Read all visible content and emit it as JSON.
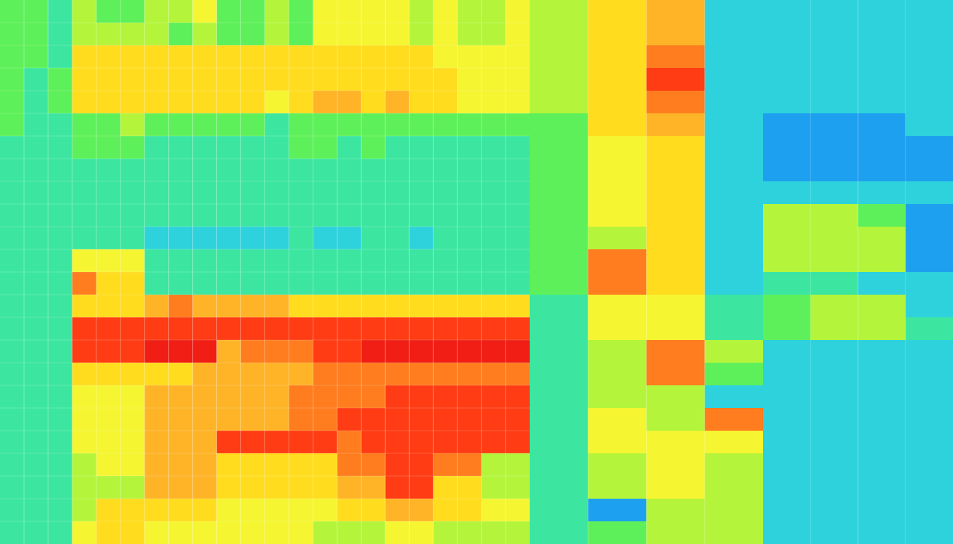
{
  "chart_data": {
    "type": "heatmap",
    "title": "",
    "xlabel": "",
    "ylabel": "",
    "colormap": "jet",
    "palette": [
      "#0050f0",
      "#1ea0f0",
      "#2ed2dc",
      "#3ce6a0",
      "#5ef05a",
      "#b4f53c",
      "#f5f532",
      "#ffdc1e",
      "#ffb428",
      "#ff7d1e",
      "#ff3c14",
      "#f01e14"
    ],
    "value_range": [
      0,
      11
    ],
    "cell_labels_visible": false,
    "regions": [
      {
        "name": "left-dense",
        "col_count": 22,
        "row_count": 24,
        "col_span": [
          0,
          747
        ]
      },
      {
        "name": "middle-bands",
        "col_count": 4,
        "row_count": 24,
        "col_span": [
          747,
          1076
        ]
      },
      {
        "name": "right-blue",
        "col_count": 4,
        "row_count": 24,
        "col_span": [
          1076,
          1344
        ]
      }
    ],
    "left_values": [
      [
        4,
        4,
        3,
        5,
        4,
        4,
        5,
        5,
        6,
        4,
        4,
        5,
        4,
        6,
        6,
        6,
        6,
        5,
        6,
        5,
        5,
        6
      ],
      [
        4,
        4,
        3,
        5,
        5,
        5,
        5,
        4,
        5,
        4,
        4,
        5,
        4,
        6,
        6,
        6,
        6,
        5,
        6,
        5,
        5,
        6
      ],
      [
        4,
        4,
        3,
        7,
        7,
        7,
        7,
        7,
        7,
        7,
        7,
        7,
        7,
        7,
        7,
        7,
        7,
        7,
        6,
        6,
        6,
        6
      ],
      [
        4,
        3,
        4,
        7,
        7,
        7,
        7,
        7,
        7,
        7,
        7,
        7,
        7,
        7,
        7,
        7,
        7,
        7,
        7,
        6,
        6,
        6
      ],
      [
        4,
        3,
        4,
        7,
        7,
        7,
        7,
        7,
        7,
        7,
        7,
        6,
        7,
        8,
        8,
        7,
        8,
        7,
        7,
        6,
        6,
        6
      ],
      [
        4,
        3,
        3,
        4,
        4,
        5,
        4,
        4,
        4,
        4,
        4,
        3,
        4,
        4,
        4,
        4,
        4,
        4,
        4,
        4,
        4,
        4
      ],
      [
        3,
        3,
        3,
        4,
        4,
        4,
        3,
        3,
        3,
        3,
        3,
        3,
        4,
        4,
        3,
        4,
        3,
        3,
        3,
        3,
        3,
        3
      ],
      [
        3,
        3,
        3,
        3,
        3,
        3,
        3,
        3,
        3,
        3,
        3,
        3,
        3,
        3,
        3,
        3,
        3,
        3,
        3,
        3,
        3,
        3
      ],
      [
        3,
        3,
        3,
        3,
        3,
        3,
        3,
        3,
        3,
        3,
        3,
        3,
        3,
        3,
        3,
        3,
        3,
        3,
        3,
        3,
        3,
        3
      ],
      [
        3,
        3,
        3,
        3,
        3,
        3,
        3,
        3,
        3,
        3,
        3,
        3,
        3,
        3,
        3,
        3,
        3,
        3,
        3,
        3,
        3,
        3
      ],
      [
        3,
        3,
        3,
        3,
        3,
        3,
        2,
        2,
        2,
        2,
        2,
        2,
        3,
        2,
        2,
        3,
        3,
        2,
        3,
        3,
        3,
        3
      ],
      [
        3,
        3,
        3,
        6,
        6,
        6,
        3,
        3,
        3,
        3,
        3,
        3,
        3,
        3,
        3,
        3,
        3,
        3,
        3,
        3,
        3,
        3
      ],
      [
        3,
        3,
        3,
        9,
        7,
        7,
        3,
        3,
        3,
        3,
        3,
        3,
        3,
        3,
        3,
        3,
        3,
        3,
        3,
        3,
        3,
        3
      ],
      [
        3,
        3,
        3,
        7,
        7,
        7,
        8,
        9,
        8,
        8,
        8,
        8,
        7,
        7,
        7,
        7,
        7,
        7,
        7,
        7,
        7,
        7
      ],
      [
        3,
        3,
        3,
        10,
        10,
        10,
        10,
        10,
        10,
        10,
        10,
        10,
        10,
        10,
        10,
        10,
        10,
        10,
        10,
        10,
        10,
        10
      ],
      [
        3,
        3,
        3,
        10,
        10,
        10,
        11,
        11,
        11,
        8,
        9,
        9,
        9,
        10,
        10,
        11,
        11,
        11,
        11,
        11,
        11,
        11
      ],
      [
        3,
        3,
        3,
        7,
        7,
        7,
        7,
        7,
        8,
        8,
        8,
        8,
        8,
        9,
        9,
        9,
        9,
        9,
        9,
        9,
        9,
        9
      ],
      [
        3,
        3,
        3,
        6,
        6,
        6,
        8,
        8,
        8,
        8,
        8,
        8,
        9,
        9,
        9,
        9,
        10,
        10,
        10,
        10,
        10,
        10
      ],
      [
        3,
        3,
        3,
        6,
        6,
        6,
        8,
        8,
        8,
        8,
        8,
        8,
        9,
        9,
        10,
        10,
        10,
        10,
        10,
        10,
        10,
        10
      ],
      [
        3,
        3,
        3,
        6,
        6,
        6,
        8,
        8,
        8,
        10,
        10,
        10,
        10,
        10,
        9,
        10,
        10,
        10,
        10,
        10,
        10,
        10
      ],
      [
        3,
        3,
        3,
        5,
        6,
        6,
        8,
        8,
        8,
        7,
        7,
        7,
        7,
        7,
        9,
        9,
        10,
        10,
        9,
        9,
        5,
        5
      ],
      [
        3,
        3,
        3,
        5,
        5,
        5,
        8,
        8,
        8,
        7,
        7,
        7,
        7,
        7,
        8,
        8,
        10,
        10,
        7,
        7,
        5,
        5
      ],
      [
        3,
        3,
        3,
        5,
        7,
        7,
        7,
        7,
        7,
        6,
        6,
        6,
        6,
        6,
        7,
        7,
        8,
        8,
        7,
        7,
        6,
        6
      ],
      [
        3,
        3,
        3,
        6,
        7,
        7,
        6,
        6,
        6,
        6,
        6,
        6,
        6,
        5,
        5,
        5,
        6,
        6,
        5,
        5,
        5,
        5
      ]
    ],
    "middle_values": [
      [
        5,
        7,
        8,
        2
      ],
      [
        5,
        7,
        8,
        2
      ],
      [
        5,
        7,
        9,
        2
      ],
      [
        5,
        7,
        10,
        2
      ],
      [
        5,
        7,
        9,
        2
      ],
      [
        4,
        7,
        8,
        2
      ],
      [
        4,
        6,
        7,
        2
      ],
      [
        4,
        6,
        7,
        2
      ],
      [
        4,
        6,
        7,
        2
      ],
      [
        4,
        6,
        7,
        2
      ],
      [
        4,
        5,
        7,
        2
      ],
      [
        4,
        9,
        7,
        2
      ],
      [
        4,
        9,
        7,
        2
      ],
      [
        3,
        6,
        6,
        3
      ],
      [
        3,
        6,
        6,
        3
      ],
      [
        3,
        5,
        9,
        5
      ],
      [
        3,
        5,
        9,
        4
      ],
      [
        3,
        5,
        5,
        2
      ],
      [
        3,
        6,
        5,
        9
      ],
      [
        3,
        6,
        6,
        6
      ],
      [
        3,
        5,
        6,
        5
      ],
      [
        3,
        5,
        6,
        5
      ],
      [
        3,
        1,
        5,
        5
      ],
      [
        3,
        4,
        5,
        5
      ]
    ],
    "right_values": [
      [
        2,
        2,
        2,
        2
      ],
      [
        2,
        2,
        2,
        2
      ],
      [
        2,
        2,
        2,
        2
      ],
      [
        2,
        2,
        2,
        2
      ],
      [
        2,
        2,
        2,
        2
      ],
      [
        1,
        1,
        1,
        2
      ],
      [
        1,
        1,
        1,
        1
      ],
      [
        1,
        1,
        1,
        1
      ],
      [
        2,
        2,
        2,
        2
      ],
      [
        5,
        5,
        4,
        1
      ],
      [
        5,
        5,
        5,
        1
      ],
      [
        5,
        5,
        5,
        1
      ],
      [
        3,
        3,
        2,
        2
      ],
      [
        4,
        5,
        5,
        2
      ],
      [
        4,
        5,
        5,
        3
      ],
      [
        2,
        2,
        2,
        2
      ],
      [
        2,
        2,
        2,
        2
      ],
      [
        2,
        2,
        2,
        2
      ],
      [
        2,
        2,
        2,
        2
      ],
      [
        2,
        2,
        2,
        2
      ],
      [
        2,
        2,
        2,
        2
      ],
      [
        2,
        2,
        2,
        2
      ],
      [
        2,
        2,
        2,
        2
      ],
      [
        2,
        2,
        2,
        2
      ]
    ]
  }
}
